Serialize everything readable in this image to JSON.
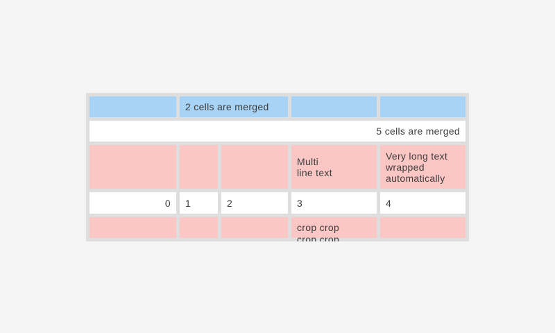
{
  "colors": {
    "page_background": "#f5f5f5",
    "table_background": "#dedede",
    "blue_cell": "#a7d3f6",
    "pink_cell": "#fbc7c5",
    "white_cell": "#ffffff",
    "text": "#3c3c3c"
  },
  "table": {
    "row1": {
      "merged_label": "2 cells are merged"
    },
    "row2": {
      "merged_label": "5 cells are merged"
    },
    "row3": {
      "multi_line": "Multi\nline text",
      "wrapped": "Very long text wrapped automatically"
    },
    "row4": {
      "values": [
        "0",
        "1",
        "2",
        "3",
        "4"
      ]
    },
    "row5": {
      "crop_text": "crop crop\ncrop crop"
    }
  }
}
